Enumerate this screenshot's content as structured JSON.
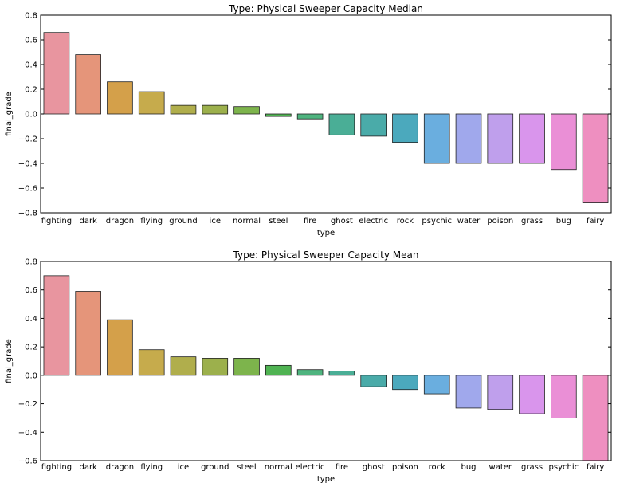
{
  "chart_data": [
    {
      "type": "bar",
      "title": "Type: Physical Sweeper Capacity Median",
      "xlabel": "type",
      "ylabel": "final_grade",
      "ylim": [
        -0.8,
        0.8
      ],
      "yticks": [
        "0.8",
        "0.6",
        "0.4",
        "0.2",
        "0.0",
        "−0.2",
        "−0.4",
        "−0.6",
        "−0.8"
      ],
      "ytick_values": [
        0.8,
        0.6,
        0.4,
        0.2,
        0.0,
        -0.2,
        -0.4,
        -0.6,
        -0.8
      ],
      "grid": false,
      "categories": [
        "fighting",
        "dark",
        "dragon",
        "flying",
        "ground",
        "ice",
        "normal",
        "steel",
        "fire",
        "ghost",
        "electric",
        "rock",
        "psychic",
        "water",
        "poison",
        "grass",
        "bug",
        "fairy"
      ],
      "values": [
        0.66,
        0.48,
        0.26,
        0.18,
        0.07,
        0.07,
        0.06,
        -0.02,
        -0.04,
        -0.17,
        -0.18,
        -0.23,
        -0.4,
        -0.4,
        -0.4,
        -0.4,
        -0.45,
        -0.72
      ],
      "colors": [
        "#e8959f",
        "#e5957a",
        "#d4a04a",
        "#c6ab4c",
        "#b0ae4c",
        "#9cb04c",
        "#7db44c",
        "#4fb352",
        "#4fb47f",
        "#4aae96",
        "#4aaba9",
        "#4ba9bd",
        "#6aaedf",
        "#a0a8ec",
        "#bf9fec",
        "#d995ec",
        "#ea8fd6",
        "#ee8fc0"
      ]
    },
    {
      "type": "bar",
      "title": "Type: Physical Sweeper Capacity Mean",
      "xlabel": "type",
      "ylabel": "final_grade",
      "ylim": [
        -0.6,
        0.8
      ],
      "yticks": [
        "0.8",
        "0.6",
        "0.4",
        "0.2",
        "0.0",
        "−0.2",
        "−0.4",
        "−0.6"
      ],
      "ytick_values": [
        0.8,
        0.6,
        0.4,
        0.2,
        0.0,
        -0.2,
        -0.4,
        -0.6
      ],
      "grid": false,
      "categories": [
        "fighting",
        "dark",
        "dragon",
        "flying",
        "ice",
        "ground",
        "steel",
        "normal",
        "electric",
        "fire",
        "ghost",
        "poison",
        "rock",
        "bug",
        "water",
        "grass",
        "psychic",
        "fairy"
      ],
      "values": [
        0.7,
        0.59,
        0.39,
        0.18,
        0.13,
        0.12,
        0.12,
        0.07,
        0.04,
        0.03,
        -0.08,
        -0.1,
        -0.13,
        -0.23,
        -0.24,
        -0.27,
        -0.3,
        -0.6
      ],
      "colors": [
        "#e8959f",
        "#e5957a",
        "#d4a04a",
        "#c6ab4c",
        "#b0ae4c",
        "#9cb04c",
        "#7db44c",
        "#4fb352",
        "#4fb47f",
        "#4aae96",
        "#4aaba9",
        "#4ba9bd",
        "#6aaedf",
        "#a0a8ec",
        "#bf9fec",
        "#d995ec",
        "#ea8fd6",
        "#ee8fc0"
      ]
    }
  ]
}
